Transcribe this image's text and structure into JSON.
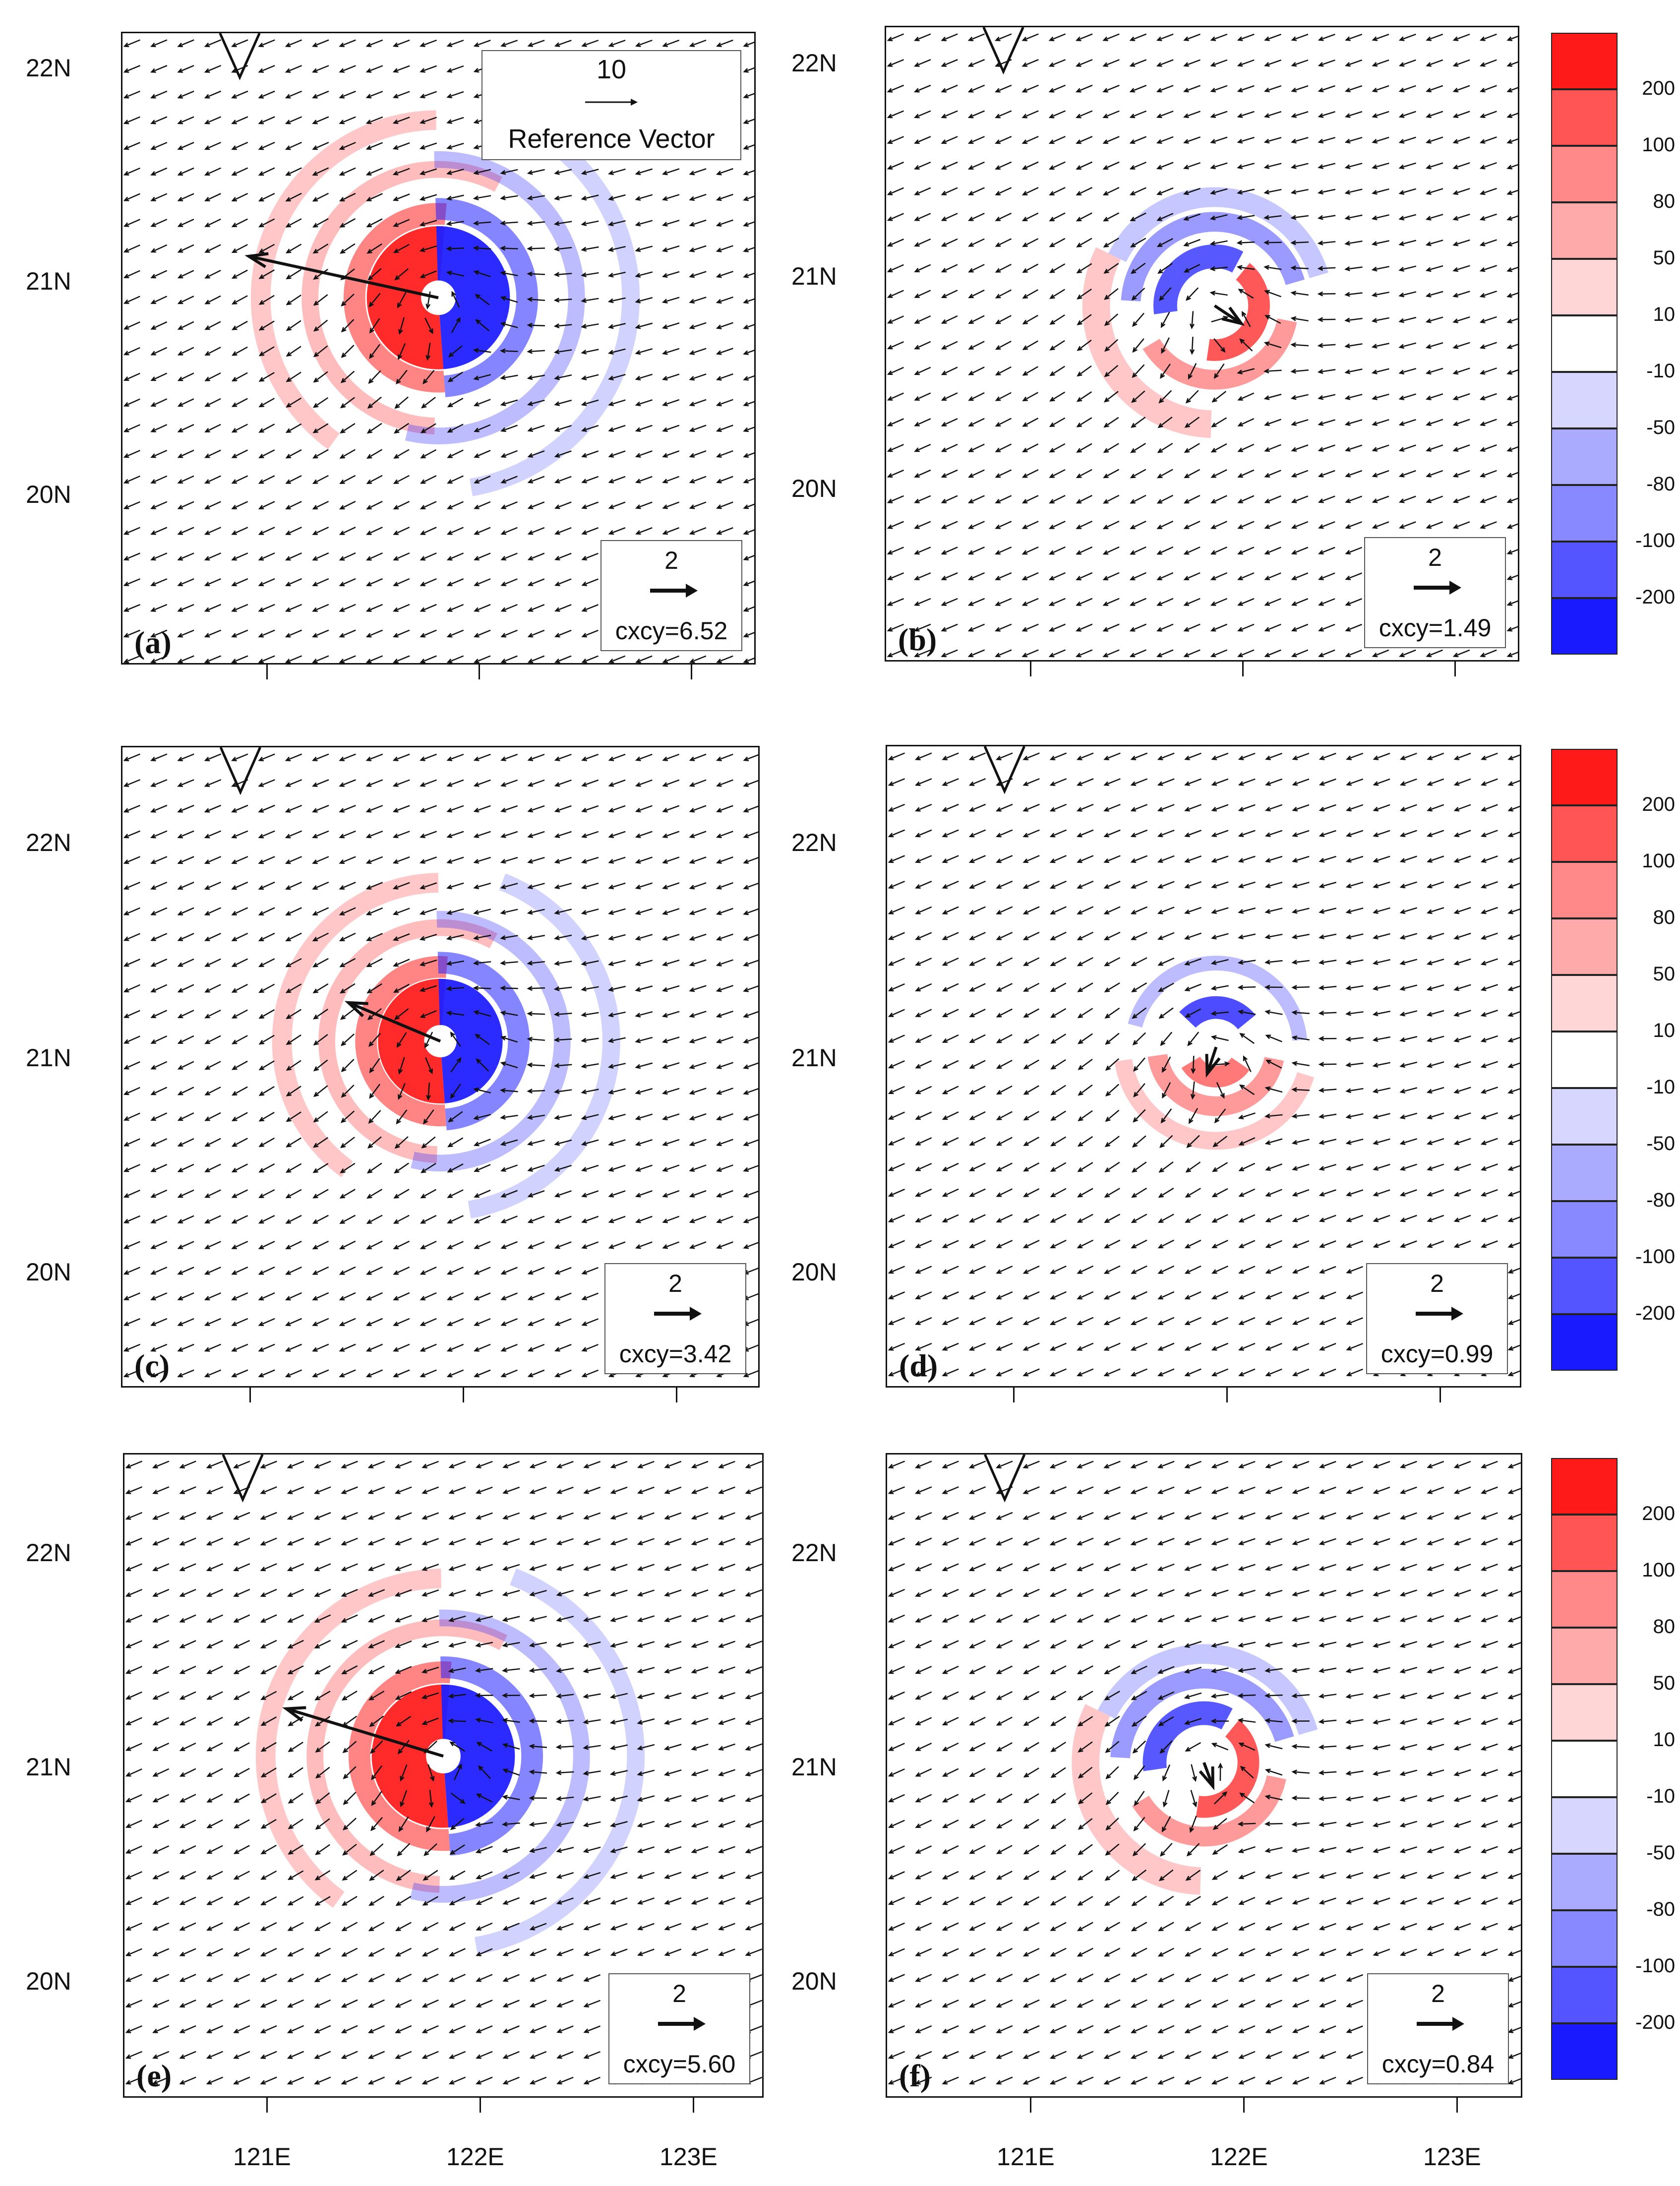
{
  "panels": [
    {
      "id": "a",
      "label": "(a)",
      "cxcy": "cxcy=6.52",
      "ref_magnitude": "2",
      "steering": {
        "dx": -6.4,
        "dy": 1.4
      },
      "pattern": "dipole-wE",
      "intensity": 1.0
    },
    {
      "id": "b",
      "label": "(b)",
      "cxcy": "cxcy=1.49",
      "ref_magnitude": "2",
      "steering": {
        "dx": 0.9,
        "dy": -0.6
      },
      "pattern": "ring-mixed",
      "intensity": 0.6
    },
    {
      "id": "c",
      "label": "(c)",
      "cxcy": "cxcy=3.42",
      "ref_magnitude": "2",
      "steering": {
        "dx": -3.1,
        "dy": 1.3
      },
      "pattern": "dipole-wE",
      "intensity": 0.85
    },
    {
      "id": "d",
      "label": "(d)",
      "cxcy": "cxcy=0.99",
      "ref_magnitude": "2",
      "steering": {
        "dx": -0.3,
        "dy": -0.9
      },
      "pattern": "ring-ns",
      "intensity": 0.5
    },
    {
      "id": "e",
      "label": "(e)",
      "cxcy": "cxcy=5.60",
      "ref_magnitude": "2",
      "steering": {
        "dx": -5.3,
        "dy": 1.6
      },
      "pattern": "dipole-wE",
      "intensity": 1.0
    },
    {
      "id": "f",
      "label": "(f)",
      "cxcy": "cxcy=0.84",
      "ref_magnitude": "2",
      "steering": {
        "dx": 0.3,
        "dy": -0.8
      },
      "pattern": "ring-mixed",
      "intensity": 0.55
    }
  ],
  "reference_vector": {
    "magnitude": "10",
    "label": "Reference Vector"
  },
  "lat_labels": [
    "22N",
    "21N",
    "20N"
  ],
  "lon_labels": [
    "121E",
    "122E",
    "123E"
  ],
  "colorbar": {
    "levels": [
      "200",
      "100",
      "80",
      "50",
      "10",
      "-10",
      "-50",
      "-80",
      "-100",
      "-200"
    ],
    "colors": [
      "#ff1a1a",
      "#ff5555",
      "#ff8888",
      "#ffaaaa",
      "#ffd6d6",
      "#ffffff",
      "#d6d6ff",
      "#aaaaff",
      "#8888ff",
      "#5555ff",
      "#1a1aff"
    ]
  },
  "colors": {
    "positive": "#ff2020",
    "negative": "#2020ff",
    "frame": "#111111"
  }
}
